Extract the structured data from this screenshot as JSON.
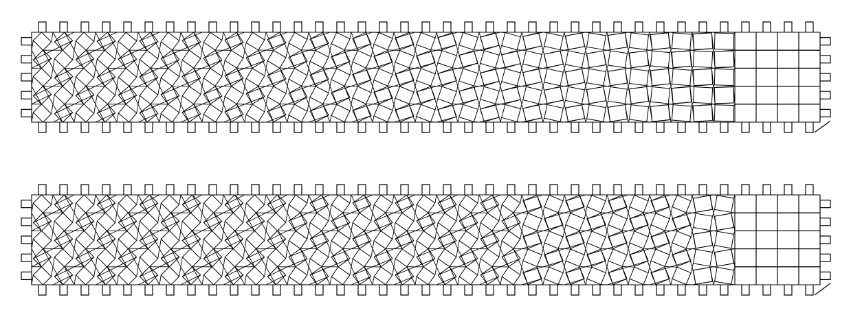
{
  "diagram": {
    "description_free": true,
    "stroke_color": "#000000",
    "background_color": "#ffffff",
    "panels": [
      {
        "id": "top",
        "columns": 37,
        "rows": 5,
        "twist_profile": "linear-decay",
        "max_twist_deg": 45,
        "extra_segments_left": 0
      },
      {
        "id": "bottom",
        "columns": 37,
        "rows": 5,
        "twist_profile": "graded-plateau",
        "max_twist_deg": 45,
        "extra_segments_left": 0
      }
    ]
  }
}
